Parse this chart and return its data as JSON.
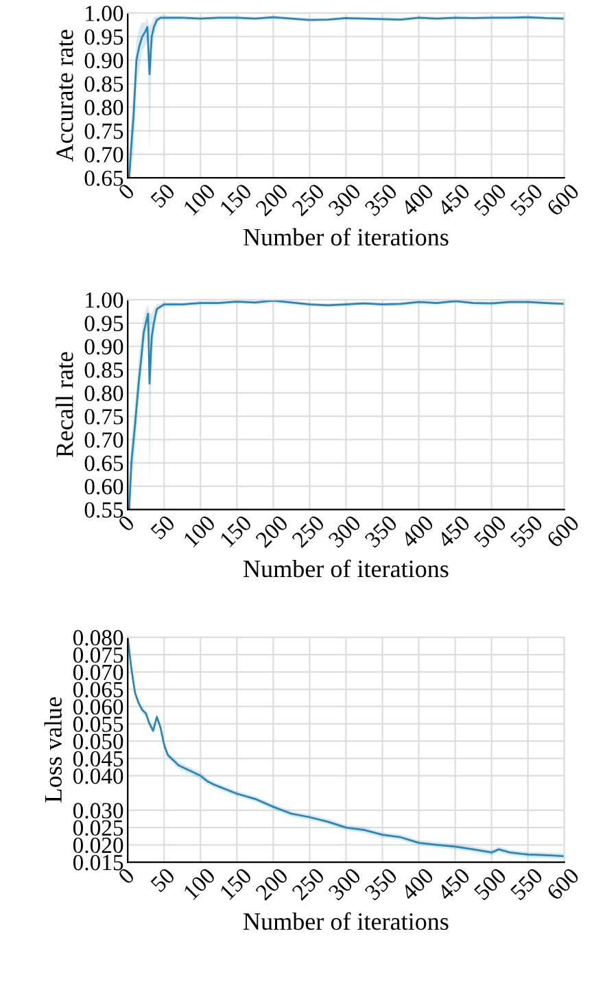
{
  "chart_data": [
    {
      "type": "line",
      "ylabel": "Accurate rate",
      "xlabel": "Number of iterations",
      "xlim": [
        0,
        600
      ],
      "ylim": [
        0.65,
        1.0
      ],
      "xticks": [
        0,
        50,
        100,
        150,
        200,
        250,
        300,
        350,
        400,
        450,
        500,
        550,
        600
      ],
      "yticks": [
        {
          "value": 0.65,
          "label": "0.65"
        },
        {
          "value": 0.7,
          "label": "0.70"
        },
        {
          "value": 0.75,
          "label": "0.75"
        },
        {
          "value": 0.8,
          "label": "0.80"
        },
        {
          "value": 0.85,
          "label": "0.85"
        },
        {
          "value": 0.9,
          "label": "0.90"
        },
        {
          "value": 0.95,
          "label": "0.95"
        },
        {
          "value": 1.0,
          "label": "1.00"
        }
      ],
      "grid": true,
      "series": [
        {
          "color": "#2b86b8",
          "x": [
            2,
            5,
            8,
            12,
            16,
            20,
            24,
            27,
            30,
            33,
            36,
            40,
            45,
            50,
            60,
            75,
            100,
            125,
            150,
            175,
            200,
            225,
            250,
            275,
            300,
            325,
            350,
            375,
            400,
            425,
            450,
            475,
            500,
            525,
            550,
            575,
            600
          ],
          "values": [
            0.65,
            0.72,
            0.78,
            0.9,
            0.93,
            0.95,
            0.96,
            0.97,
            0.87,
            0.95,
            0.97,
            0.985,
            0.99,
            0.99,
            0.99,
            0.99,
            0.988,
            0.99,
            0.99,
            0.988,
            0.991,
            0.988,
            0.985,
            0.986,
            0.989,
            0.988,
            0.987,
            0.986,
            0.99,
            0.988,
            0.99,
            0.989,
            0.99,
            0.99,
            0.991,
            0.989,
            0.988
          ],
          "lower": [
            0.65,
            0.67,
            0.7,
            0.85,
            0.88,
            0.92,
            0.93,
            0.94,
            0.7,
            0.92,
            0.95,
            0.975,
            0.985,
            0.985,
            0.985,
            0.986,
            0.985,
            0.986,
            0.986,
            0.985,
            0.987,
            0.985,
            0.982,
            0.983,
            0.986,
            0.985,
            0.984,
            0.983,
            0.987,
            0.985,
            0.987,
            0.986,
            0.987,
            0.987,
            0.988,
            0.986,
            0.985
          ],
          "upper": [
            0.7,
            0.78,
            0.84,
            0.94,
            0.97,
            0.98,
            0.98,
            0.99,
            0.97,
            0.98,
            0.99,
            0.993,
            0.995,
            0.995,
            0.994,
            0.994,
            0.992,
            0.994,
            0.994,
            0.992,
            0.995,
            0.992,
            0.989,
            0.99,
            0.993,
            0.992,
            0.991,
            0.99,
            0.994,
            0.992,
            0.994,
            0.993,
            0.994,
            0.994,
            0.995,
            0.993,
            0.992
          ]
        }
      ]
    },
    {
      "type": "line",
      "ylabel": "Recall rate",
      "xlabel": "Number of iterations",
      "xlim": [
        0,
        600
      ],
      "ylim": [
        0.55,
        1.0
      ],
      "xticks": [
        0,
        50,
        100,
        150,
        200,
        250,
        300,
        350,
        400,
        450,
        500,
        550,
        600
      ],
      "yticks": [
        {
          "value": 0.55,
          "label": "0.55"
        },
        {
          "value": 0.6,
          "label": "0.60"
        },
        {
          "value": 0.65,
          "label": "0.65"
        },
        {
          "value": 0.7,
          "label": "0.70"
        },
        {
          "value": 0.75,
          "label": "0.75"
        },
        {
          "value": 0.8,
          "label": "0.80"
        },
        {
          "value": 0.85,
          "label": "0.85"
        },
        {
          "value": 0.9,
          "label": "0.90"
        },
        {
          "value": 0.95,
          "label": "0.95"
        },
        {
          "value": 1.0,
          "label": "1.00"
        }
      ],
      "grid": true,
      "series": [
        {
          "color": "#2b86b8",
          "x": [
            2,
            5,
            10,
            15,
            19,
            22,
            25,
            28,
            30,
            33,
            36,
            40,
            45,
            50,
            60,
            75,
            100,
            125,
            150,
            175,
            200,
            225,
            250,
            275,
            300,
            325,
            350,
            375,
            400,
            425,
            450,
            475,
            500,
            525,
            550,
            575,
            600
          ],
          "values": [
            0.55,
            0.65,
            0.73,
            0.82,
            0.88,
            0.93,
            0.95,
            0.97,
            0.82,
            0.92,
            0.95,
            0.98,
            0.985,
            0.99,
            0.99,
            0.99,
            0.993,
            0.993,
            0.996,
            0.994,
            0.998,
            0.994,
            0.99,
            0.988,
            0.99,
            0.992,
            0.99,
            0.991,
            0.995,
            0.993,
            0.997,
            0.993,
            0.992,
            0.995,
            0.995,
            0.993,
            0.991
          ],
          "lower": [
            0.55,
            0.6,
            0.68,
            0.78,
            0.84,
            0.9,
            0.92,
            0.94,
            0.6,
            0.88,
            0.93,
            0.97,
            0.98,
            0.985,
            0.985,
            0.986,
            0.989,
            0.989,
            0.992,
            0.99,
            0.994,
            0.99,
            0.986,
            0.984,
            0.986,
            0.988,
            0.986,
            0.987,
            0.991,
            0.989,
            0.993,
            0.989,
            0.988,
            0.991,
            0.991,
            0.989,
            0.987
          ],
          "upper": [
            0.62,
            0.7,
            0.78,
            0.87,
            0.93,
            0.96,
            0.98,
            0.99,
            0.97,
            0.97,
            0.98,
            0.99,
            0.992,
            0.995,
            0.995,
            0.994,
            0.997,
            0.997,
            0.999,
            0.998,
            1.0,
            0.998,
            0.994,
            0.992,
            0.994,
            0.996,
            0.994,
            0.995,
            0.999,
            0.997,
            1.0,
            0.997,
            0.996,
            0.999,
            0.999,
            0.997,
            0.995
          ]
        }
      ]
    },
    {
      "type": "line",
      "ylabel": "Loss value",
      "xlabel": "Number of iterations",
      "xlim": [
        0,
        600
      ],
      "ylim": [
        0.015,
        0.08
      ],
      "xticks": [
        0,
        50,
        100,
        150,
        200,
        250,
        300,
        350,
        400,
        450,
        500,
        550,
        600
      ],
      "yticks": [
        {
          "value": 0.015,
          "label": "0.015"
        },
        {
          "value": 0.02,
          "label": "0.020"
        },
        {
          "value": 0.025,
          "label": "0.025"
        },
        {
          "value": 0.03,
          "label": "0.030"
        },
        {
          "value": 0.04,
          "label": "0.040"
        },
        {
          "value": 0.045,
          "label": "0.045"
        },
        {
          "value": 0.05,
          "label": "0.050"
        },
        {
          "value": 0.055,
          "label": "0.055"
        },
        {
          "value": 0.06,
          "label": "0.060"
        },
        {
          "value": 0.065,
          "label": "0.065"
        },
        {
          "value": 0.07,
          "label": "0.070"
        },
        {
          "value": 0.075,
          "label": "0.075"
        },
        {
          "value": 0.08,
          "label": "0.080"
        }
      ],
      "grid": true,
      "series": [
        {
          "color": "#2b86b8",
          "x": [
            0,
            5,
            10,
            15,
            20,
            25,
            30,
            35,
            40,
            45,
            50,
            55,
            60,
            70,
            80,
            90,
            100,
            110,
            120,
            150,
            175,
            200,
            225,
            250,
            275,
            300,
            325,
            350,
            375,
            400,
            425,
            450,
            475,
            500,
            510,
            525,
            550,
            575,
            600
          ],
          "values": [
            0.08,
            0.071,
            0.064,
            0.061,
            0.059,
            0.058,
            0.055,
            0.053,
            0.057,
            0.054,
            0.049,
            0.046,
            0.045,
            0.043,
            0.042,
            0.041,
            0.04,
            0.0383,
            0.0373,
            0.0348,
            0.0333,
            0.031,
            0.029,
            0.028,
            0.0267,
            0.025,
            0.0243,
            0.0229,
            0.0222,
            0.0206,
            0.02,
            0.0195,
            0.0187,
            0.0178,
            0.0187,
            0.0178,
            0.0172,
            0.017,
            0.0167
          ],
          "lower": [
            0.079,
            0.07,
            0.063,
            0.06,
            0.058,
            0.057,
            0.054,
            0.052,
            0.056,
            0.053,
            0.048,
            0.045,
            0.044,
            0.042,
            0.041,
            0.04,
            0.039,
            0.0375,
            0.0365,
            0.034,
            0.0325,
            0.0302,
            0.0282,
            0.0272,
            0.0259,
            0.0242,
            0.0235,
            0.0221,
            0.0214,
            0.0198,
            0.0192,
            0.0187,
            0.0179,
            0.017,
            0.0179,
            0.017,
            0.0164,
            0.0162,
            0.0159
          ],
          "upper": [
            0.08,
            0.072,
            0.065,
            0.062,
            0.06,
            0.059,
            0.056,
            0.054,
            0.058,
            0.055,
            0.05,
            0.047,
            0.046,
            0.044,
            0.043,
            0.042,
            0.041,
            0.0391,
            0.0381,
            0.0356,
            0.0341,
            0.0318,
            0.0298,
            0.0288,
            0.0275,
            0.0258,
            0.0251,
            0.0237,
            0.023,
            0.0214,
            0.0208,
            0.0203,
            0.0195,
            0.0186,
            0.0195,
            0.0186,
            0.018,
            0.0178,
            0.0175
          ]
        }
      ]
    }
  ]
}
